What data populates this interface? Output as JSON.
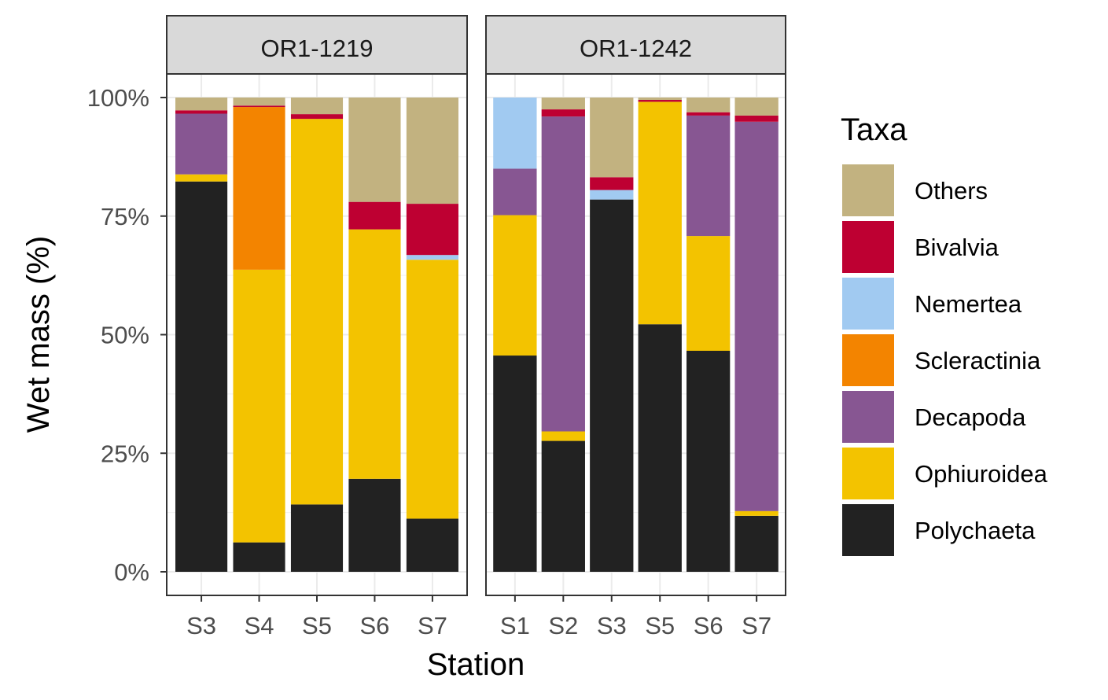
{
  "chart_data": {
    "type": "bar",
    "stacked": true,
    "xlabel": "Station",
    "ylabel": "Wet mass (%)",
    "y_tick_labels": [
      "0%",
      "25%",
      "50%",
      "75%",
      "100%"
    ],
    "ylim": [
      0,
      100
    ],
    "grid": true,
    "legend": {
      "title": "Taxa",
      "placement": "right",
      "order": [
        "Others",
        "Bivalvia",
        "Nemertea",
        "Scleractinia",
        "Decapoda",
        "Ophiuroidea",
        "Polychaeta"
      ]
    },
    "colors": {
      "Polychaeta": "#222222",
      "Ophiuroidea": "#f3c300",
      "Decapoda": "#875692",
      "Scleractinia": "#f38400",
      "Nemertea": "#a1caf1",
      "Bivalvia": "#be0032",
      "Others": "#c2b280"
    },
    "panels": [
      {
        "title": "OR1-1219",
        "categories": [
          "S3",
          "S4",
          "S5",
          "S6",
          "S7"
        ],
        "series": [
          {
            "name": "Polychaeta",
            "values": [
              82.3,
              6.2,
              14.2,
              19.6,
              11.2
            ]
          },
          {
            "name": "Ophiuroidea",
            "values": [
              1.5,
              57.5,
              81.3,
              52.6,
              54.6
            ]
          },
          {
            "name": "Decapoda",
            "values": [
              12.8,
              0,
              0,
              0,
              0
            ]
          },
          {
            "name": "Scleractinia",
            "values": [
              0,
              34.3,
              0,
              0,
              0
            ]
          },
          {
            "name": "Nemertea",
            "values": [
              0,
              0,
              0,
              0,
              1.0
            ]
          },
          {
            "name": "Bivalvia",
            "values": [
              0.7,
              0.3,
              1.0,
              5.8,
              10.8
            ]
          },
          {
            "name": "Others",
            "values": [
              2.7,
              1.7,
              3.5,
              22.0,
              22.4
            ]
          }
        ]
      },
      {
        "title": "OR1-1242",
        "categories": [
          "S1",
          "S2",
          "S3",
          "S5",
          "S6",
          "S7"
        ],
        "series": [
          {
            "name": "Polychaeta",
            "values": [
              45.6,
              27.6,
              78.5,
              52.2,
              46.6,
              11.8
            ]
          },
          {
            "name": "Ophiuroidea",
            "values": [
              29.6,
              2.0,
              0,
              46.9,
              24.2,
              1.0
            ]
          },
          {
            "name": "Decapoda",
            "values": [
              9.8,
              66.4,
              0,
              0,
              25.4,
              82.1
            ]
          },
          {
            "name": "Scleractinia",
            "values": [
              0,
              0,
              0,
              0,
              0,
              0
            ]
          },
          {
            "name": "Nemertea",
            "values": [
              15.0,
              0,
              2.0,
              0,
              0,
              0
            ]
          },
          {
            "name": "Bivalvia",
            "values": [
              0,
              1.5,
              2.7,
              0.4,
              0.7,
              1.3
            ]
          },
          {
            "name": "Others",
            "values": [
              0,
              2.5,
              16.8,
              0.5,
              3.1,
              3.8
            ]
          }
        ]
      }
    ]
  }
}
